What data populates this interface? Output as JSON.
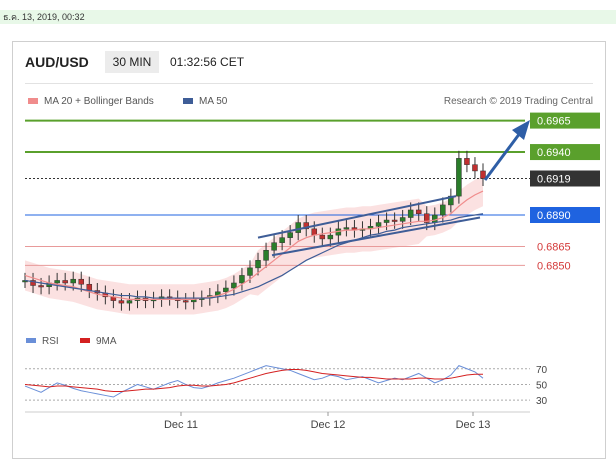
{
  "timestamp": "ธ.ค. 13, 2019, 00:32",
  "header": {
    "pair": "AUD/USD",
    "timeframe": "30 MIN",
    "time": "01:32:56 CET"
  },
  "legend": {
    "ma20": "MA 20 + Bollinger Bands",
    "ma50": "MA 50",
    "ma20_color": "#f08c8c",
    "ma50_color": "#3e5d97",
    "research": "Research © 2019 Trading Central"
  },
  "chart_data": {
    "type": "candlestick",
    "price_range": [
      0.6805,
      0.6975
    ],
    "x_labels": [
      "Dec 11",
      "Dec 12",
      "Dec 13"
    ],
    "levels": [
      {
        "value": 0.6965,
        "label": "0.6965",
        "kind": "resistance",
        "color": "#5aa02c"
      },
      {
        "value": 0.694,
        "label": "0.6940",
        "kind": "resistance",
        "color": "#5aa02c"
      },
      {
        "value": 0.6919,
        "label": "0.6919",
        "kind": "last",
        "color": "#333333"
      },
      {
        "value": 0.689,
        "label": "0.6890",
        "kind": "pivot",
        "color": "#1f63e0"
      },
      {
        "value": 0.6865,
        "label": "0.6865",
        "kind": "support",
        "color": "#d43a3a"
      },
      {
        "value": 0.685,
        "label": "0.6850",
        "kind": "support",
        "color": "#d43a3a"
      }
    ],
    "close_path": [
      0.6838,
      0.6834,
      0.6833,
      0.6836,
      0.6838,
      0.6836,
      0.6839,
      0.6835,
      0.683,
      0.6828,
      0.6825,
      0.6822,
      0.682,
      0.6822,
      0.6824,
      0.6822,
      0.6823,
      0.6825,
      0.6824,
      0.6822,
      0.6821,
      0.6823,
      0.6824,
      0.6826,
      0.6829,
      0.6832,
      0.6836,
      0.6842,
      0.6848,
      0.6854,
      0.6862,
      0.6868,
      0.6872,
      0.6876,
      0.6884,
      0.6879,
      0.6874,
      0.6871,
      0.6874,
      0.6879,
      0.688,
      0.6878,
      0.6879,
      0.6881,
      0.6884,
      0.6886,
      0.6885,
      0.6888,
      0.6894,
      0.6891,
      0.6884,
      0.689,
      0.6898,
      0.6905,
      0.6935,
      0.693,
      0.6925,
      0.6919
    ],
    "ma20": [
      0.6842,
      0.684,
      0.6838,
      0.6836,
      0.6835,
      0.6834,
      0.6833,
      0.6831,
      0.6829,
      0.6827,
      0.6826,
      0.6825,
      0.6824,
      0.6823,
      0.6823,
      0.6823,
      0.6823,
      0.6823,
      0.6823,
      0.6823,
      0.6823,
      0.6823,
      0.6824,
      0.6825,
      0.6826,
      0.6828,
      0.6831,
      0.6835,
      0.6839,
      0.6844,
      0.6849,
      0.6854,
      0.6859,
      0.6864,
      0.6869,
      0.6872,
      0.6874,
      0.6875,
      0.6876,
      0.6877,
      0.6878,
      0.6878,
      0.6879,
      0.6879,
      0.688,
      0.6881,
      0.6882,
      0.6883,
      0.6884,
      0.6885,
      0.6885,
      0.6886,
      0.6888,
      0.6891,
      0.6897,
      0.6902,
      0.6906,
      0.6909
    ],
    "ma50": [
      0.6838,
      0.6837,
      0.6836,
      0.6835,
      0.6834,
      0.6833,
      0.6832,
      0.6831,
      0.683,
      0.6829,
      0.6828,
      0.6827,
      0.6826,
      0.6826,
      0.6825,
      0.6825,
      0.6824,
      0.6824,
      0.6824,
      0.6824,
      0.6824,
      0.6824,
      0.6824,
      0.6824,
      0.6825,
      0.6826,
      0.6827,
      0.6829,
      0.6831,
      0.6833,
      0.6836,
      0.6839,
      0.6842,
      0.6846,
      0.685,
      0.6854,
      0.6857,
      0.686,
      0.6863,
      0.6866,
      0.6868,
      0.687,
      0.6872,
      0.6874,
      0.6875,
      0.6877,
      0.6878,
      0.688,
      0.6881,
      0.6882,
      0.6883,
      0.6884,
      0.6885,
      0.6886,
      0.6888,
      0.6889,
      0.689,
      0.6891
    ],
    "trend_upper": [
      [
        0.6872
      ],
      [
        0.6905
      ]
    ],
    "trend_lower": [
      [
        0.6858
      ],
      [
        0.6888
      ]
    ],
    "rsi": {
      "label": "RSI",
      "ma_label": "9MA",
      "color": "#6a8fd8",
      "ma_color": "#d42020",
      "levels": [
        70,
        50,
        30
      ],
      "range": [
        20,
        85
      ],
      "values": [
        48,
        44,
        40,
        46,
        52,
        49,
        45,
        42,
        40,
        38,
        36,
        34,
        40,
        45,
        50,
        47,
        44,
        48,
        52,
        55,
        50,
        46,
        45,
        48,
        52,
        55,
        58,
        62,
        66,
        70,
        74,
        72,
        70,
        68,
        64,
        60,
        56,
        58,
        62,
        60,
        56,
        58,
        60,
        56,
        52,
        55,
        58,
        56,
        60,
        64,
        58,
        52,
        56,
        62,
        74,
        70,
        66,
        58
      ],
      "ma_values": [
        50,
        49,
        48,
        47,
        48,
        48,
        47,
        46,
        45,
        44,
        42,
        41,
        41,
        42,
        43,
        44,
        44,
        45,
        46,
        48,
        49,
        49,
        48,
        48,
        49,
        50,
        52,
        55,
        58,
        61,
        64,
        66,
        68,
        69,
        69,
        68,
        66,
        64,
        63,
        62,
        61,
        60,
        59,
        59,
        58,
        57,
        57,
        57,
        57,
        58,
        58,
        57,
        57,
        58,
        60,
        62,
        63,
        63
      ]
    }
  }
}
